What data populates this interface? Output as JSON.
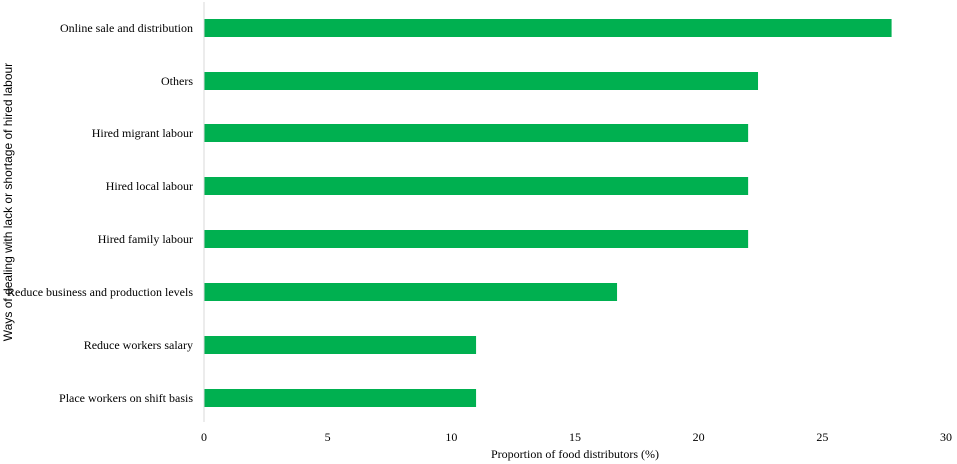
{
  "chart_data": {
    "type": "bar",
    "orientation": "horizontal",
    "categories": [
      "Online sale and distribution",
      "Others",
      "Hired migrant labour",
      "Hired local labour",
      "Hired family labour",
      "Reduce business and production levels",
      "Reduce workers salary",
      "Place workers on shift basis"
    ],
    "values": [
      27.8,
      22.4,
      22.0,
      22.0,
      22.0,
      16.7,
      11.0,
      11.0
    ],
    "xlabel": "Proportion of food distributors (%)",
    "ylabel": "Ways of dealing with lack or shortage of hired labour",
    "xlim": [
      0,
      30
    ],
    "xticks": [
      "0",
      "5",
      "10",
      "15",
      "20",
      "25",
      "30"
    ],
    "grid": false,
    "legend": "none",
    "bar_color": "#00b050",
    "axis_color": "#d9d9d9"
  }
}
